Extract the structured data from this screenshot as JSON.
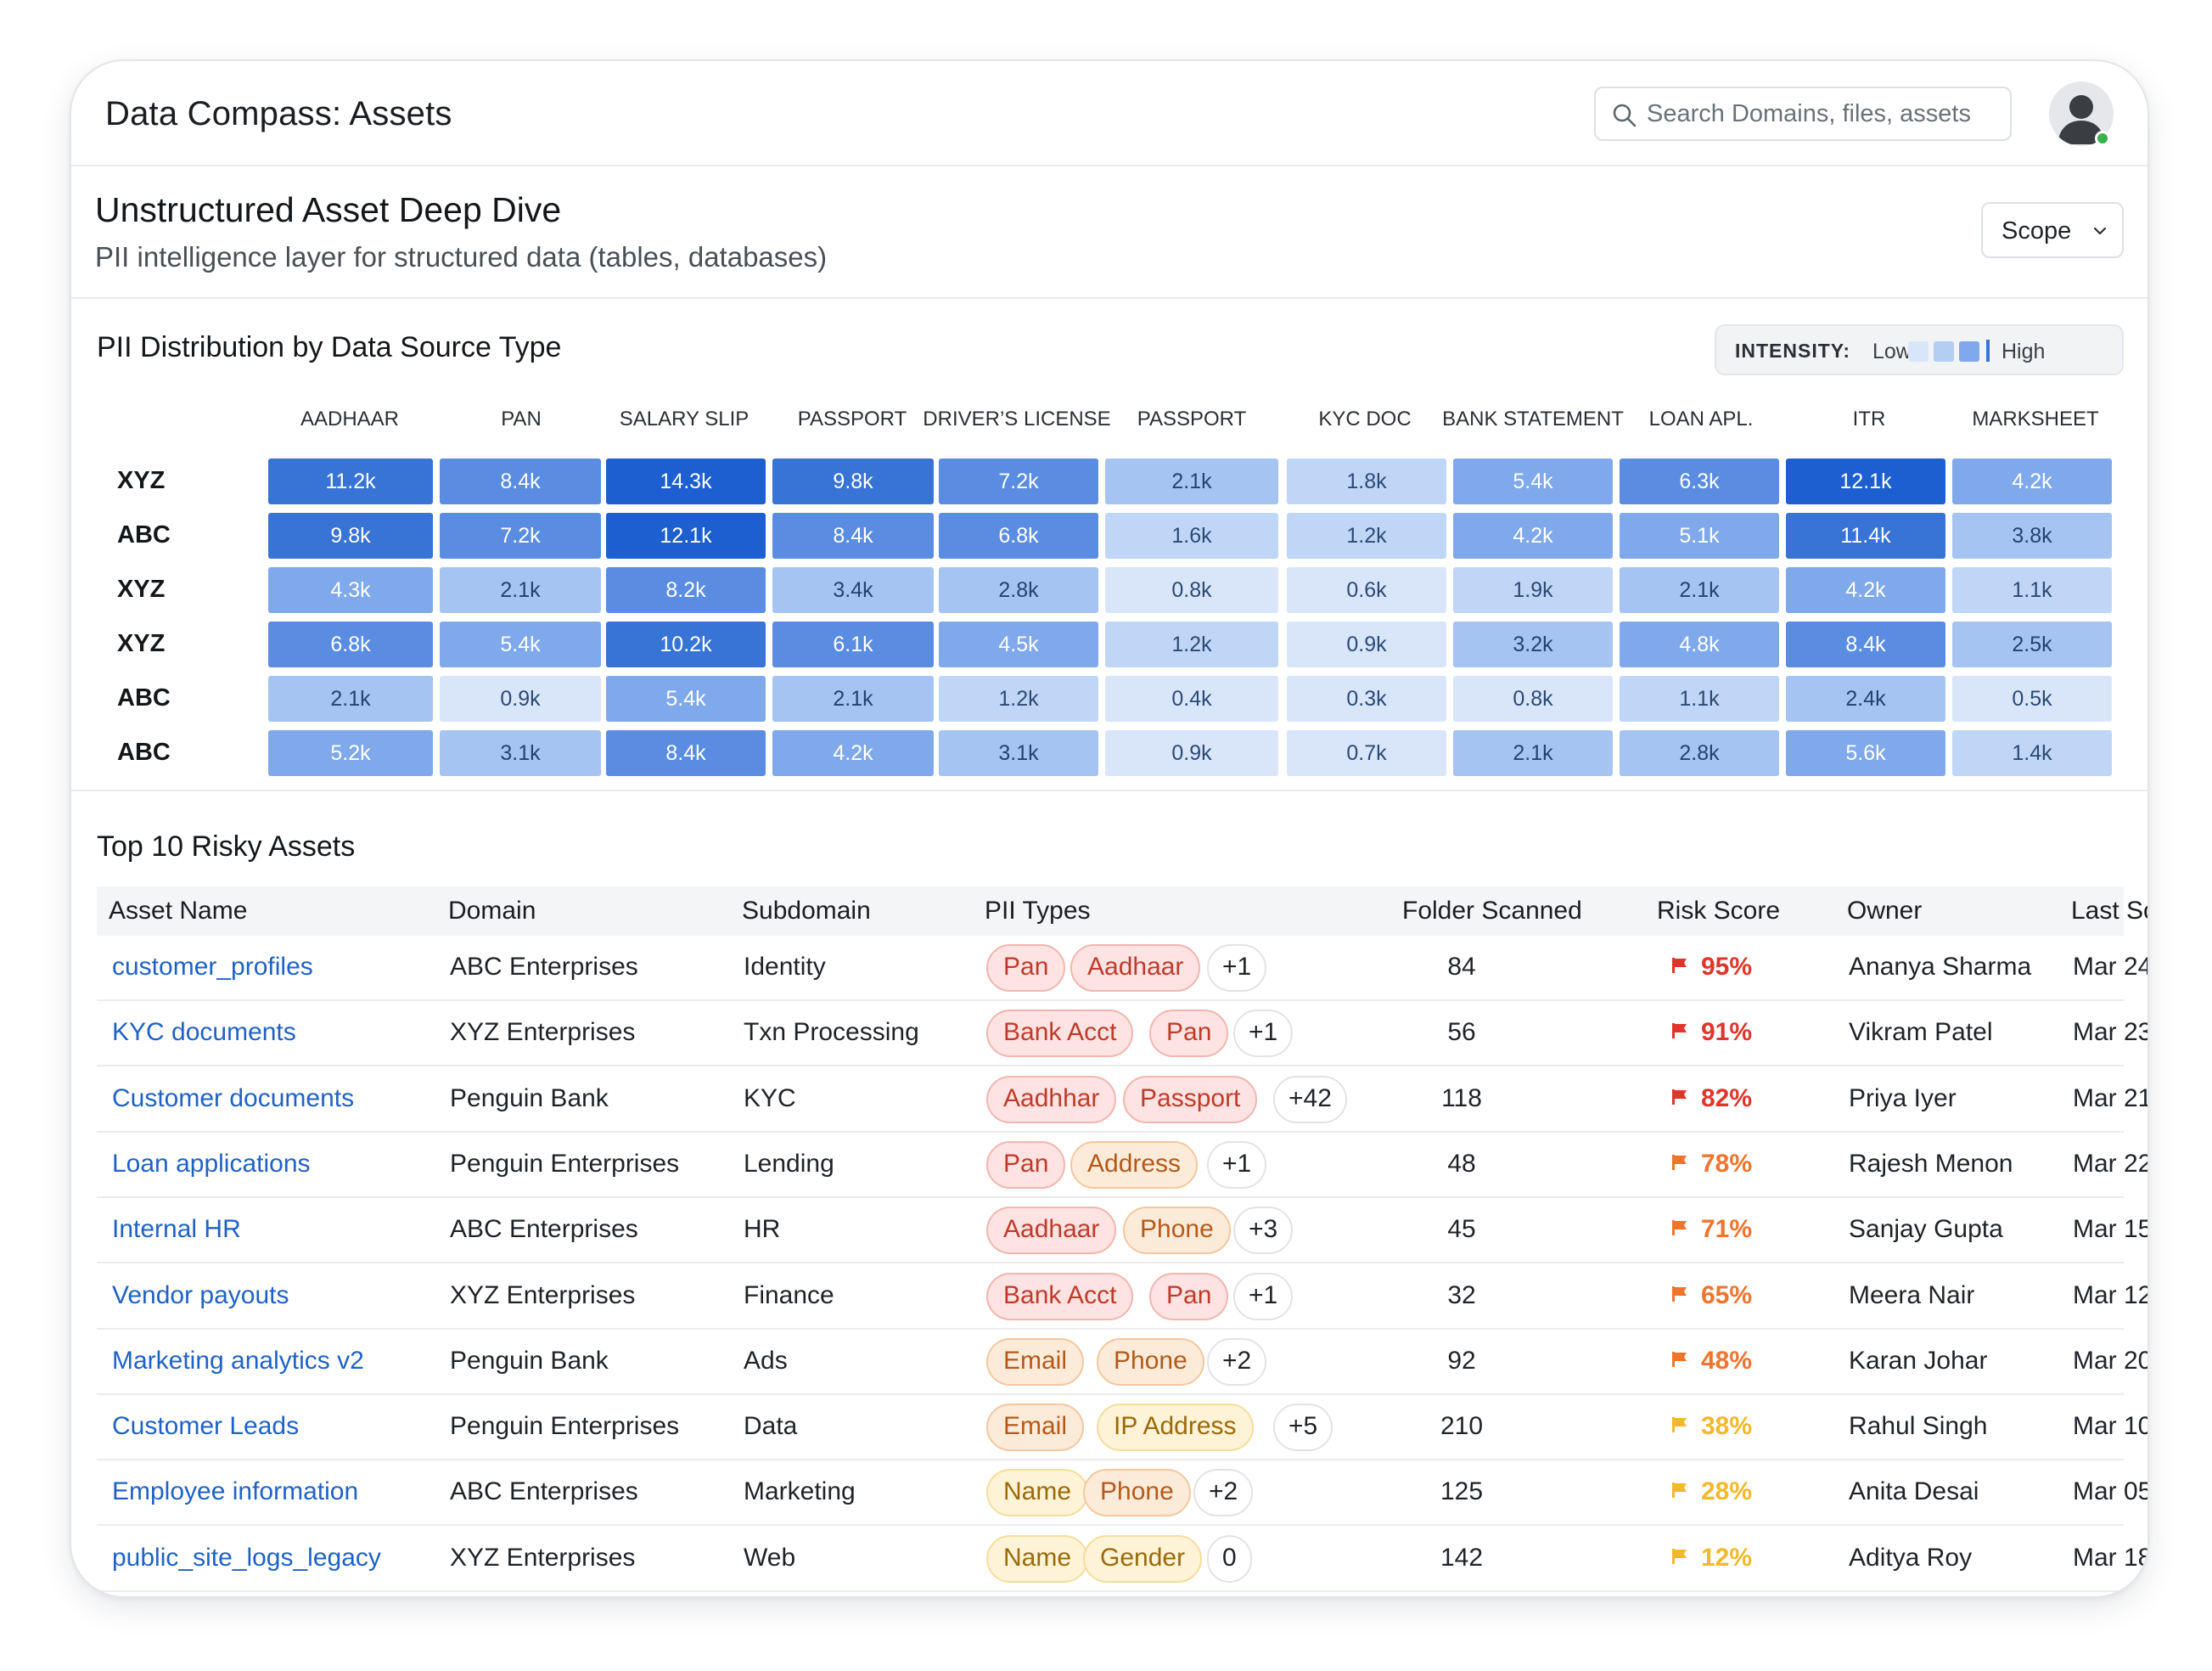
{
  "app": {
    "title": "Data Compass: Assets"
  },
  "search": {
    "placeholder": "Search Domains, files, assets"
  },
  "user": {
    "avatar": "user-avatar-icon",
    "status": "online",
    "status_color": "#36b24a"
  },
  "header": {
    "title": "Unstructured Asset Deep Dive",
    "subtitle": "PII intelligence layer for structured data (tables, databases)",
    "scope_label": "Scope"
  },
  "heatmap": {
    "title": "PII Distribution by Data Source Type",
    "intensity": {
      "label": "INTENSITY:",
      "low": "Low",
      "high": "High"
    },
    "columns": [
      "AADHAAR",
      "PAN",
      "SALARY SLIP",
      "PASSPORT",
      "DRIVER’S LICENSE",
      "PASSPORT",
      "KYC DOC",
      "BANK STATEMENT",
      "LOAN APL.",
      "ITR",
      "MARKSHEET"
    ],
    "rows": [
      {
        "label": "XYZ",
        "cells": [
          "11.2k",
          "8.4k",
          "14.3k",
          "9.8k",
          "7.2k",
          "2.1k",
          "1.8k",
          "5.4k",
          "6.3k",
          "12.1k",
          "4.2k"
        ]
      },
      {
        "label": "ABC",
        "cells": [
          "9.8k",
          "7.2k",
          "12.1k",
          "8.4k",
          "6.8k",
          "1.6k",
          "1.2k",
          "4.2k",
          "5.1k",
          "11.4k",
          "3.8k"
        ]
      },
      {
        "label": "XYZ",
        "cells": [
          "4.3k",
          "2.1k",
          "8.2k",
          "3.4k",
          "2.8k",
          "0.8k",
          "0.6k",
          "1.9k",
          "2.1k",
          "4.2k",
          "1.1k"
        ]
      },
      {
        "label": "XYZ",
        "cells": [
          "6.8k",
          "5.4k",
          "10.2k",
          "6.1k",
          "4.5k",
          "1.2k",
          "0.9k",
          "3.2k",
          "4.8k",
          "8.4k",
          "2.5k"
        ]
      },
      {
        "label": "ABC",
        "cells": [
          "2.1k",
          "0.9k",
          "5.4k",
          "2.1k",
          "1.2k",
          "0.4k",
          "0.3k",
          "0.8k",
          "1.1k",
          "2.4k",
          "0.5k"
        ]
      },
      {
        "label": "ABC",
        "cells": [
          "5.2k",
          "3.1k",
          "8.4k",
          "4.2k",
          "3.1k",
          "0.9k",
          "0.7k",
          "2.1k",
          "2.8k",
          "5.6k",
          "1.4k"
        ]
      }
    ],
    "colors": {
      "level1": "#d9e6fa",
      "level2": "#c0d6f6",
      "level3": "#a6c4f1",
      "level4": "#7fa9eb",
      "level5": "#5a8de1",
      "level6": "#3873d6",
      "level7": "#1d5fd0"
    }
  },
  "risk_table": {
    "title": "Top 10 Risky Assets",
    "headers": [
      "Asset Name",
      "Domain",
      "Subdomain",
      "PII Types",
      "Folder Scanned",
      "Risk Score",
      "Owner",
      "Last Scan"
    ],
    "rows": [
      {
        "asset": "customer_profiles",
        "domain": "ABC Enterprises",
        "subdomain": "Identity",
        "pii": [
          {
            "t": "Pan",
            "c": "red"
          },
          {
            "t": "Aadhaar",
            "c": "red"
          }
        ],
        "more": "+1",
        "folders": "84",
        "risk": "95%",
        "risk_color": "#e0352b",
        "owner": "Ananya Sharma",
        "last": "Mar 24"
      },
      {
        "asset": "KYC documents",
        "domain": "XYZ Enterprises",
        "subdomain": "Txn Processing",
        "pii": [
          {
            "t": "Bank Acct",
            "c": "red"
          },
          {
            "t": "Pan",
            "c": "red"
          }
        ],
        "more": "+1",
        "folders": "56",
        "risk": "91%",
        "risk_color": "#e0352b",
        "owner": "Vikram Patel",
        "last": "Mar 23"
      },
      {
        "asset": "Customer documents",
        "domain": "Penguin Bank",
        "subdomain": "KYC",
        "pii": [
          {
            "t": "Aadhhar",
            "c": "red"
          },
          {
            "t": "Passport",
            "c": "red"
          }
        ],
        "more": "+42",
        "folders": "118",
        "risk": "82%",
        "risk_color": "#e0352b",
        "owner": "Priya Iyer",
        "last": "Mar 21"
      },
      {
        "asset": "Loan applications",
        "domain": "Penguin Enterprises",
        "subdomain": "Lending",
        "pii": [
          {
            "t": "Pan",
            "c": "red"
          },
          {
            "t": "Address",
            "c": "orange"
          }
        ],
        "more": "+1",
        "folders": "48",
        "risk": "78%",
        "risk_color": "#f0742c",
        "owner": "Rajesh Menon",
        "last": "Mar 22"
      },
      {
        "asset": "Internal HR",
        "domain": "ABC Enterprises",
        "subdomain": "HR",
        "pii": [
          {
            "t": "Aadhaar",
            "c": "red"
          },
          {
            "t": "Phone",
            "c": "orange"
          }
        ],
        "more": "+3",
        "folders": "45",
        "risk": "71%",
        "risk_color": "#f0742c",
        "owner": "Sanjay Gupta",
        "last": "Mar 15"
      },
      {
        "asset": "Vendor payouts",
        "domain": "XYZ Enterprises",
        "subdomain": "Finance",
        "pii": [
          {
            "t": "Bank Acct",
            "c": "red"
          },
          {
            "t": "Pan",
            "c": "red"
          }
        ],
        "more": "+1",
        "folders": "32",
        "risk": "65%",
        "risk_color": "#f0742c",
        "owner": "Meera Nair",
        "last": "Mar 12"
      },
      {
        "asset": "Marketing analytics v2",
        "domain": "Penguin Bank",
        "subdomain": "Ads",
        "pii": [
          {
            "t": "Email",
            "c": "orange"
          },
          {
            "t": "Phone",
            "c": "orange"
          }
        ],
        "more": "+2",
        "folders": "92",
        "risk": "48%",
        "risk_color": "#f0742c",
        "owner": "Karan Johar",
        "last": "Mar 20"
      },
      {
        "asset": "Customer Leads",
        "domain": "Penguin Enterprises",
        "subdomain": "Data",
        "pii": [
          {
            "t": "Email",
            "c": "orange"
          },
          {
            "t": "IP Address",
            "c": "yellow"
          }
        ],
        "more": "+5",
        "folders": "210",
        "risk": "38%",
        "risk_color": "#f2b928",
        "owner": "Rahul Singh",
        "last": "Mar 10"
      },
      {
        "asset": "Employee information",
        "domain": "ABC Enterprises",
        "subdomain": "Marketing",
        "pii": [
          {
            "t": "Name",
            "c": "yellow"
          },
          {
            "t": "Phone",
            "c": "orange"
          }
        ],
        "more": "+2",
        "folders": "125",
        "risk": "28%",
        "risk_color": "#f2b928",
        "owner": "Anita Desai",
        "last": "Mar 05"
      },
      {
        "asset": "public_site_logs_legacy",
        "domain": "XYZ Enterprises",
        "subdomain": "Web",
        "pii": [
          {
            "t": "Name",
            "c": "yellow"
          },
          {
            "t": "Gender",
            "c": "yellow"
          }
        ],
        "more": "0",
        "folders": "142",
        "risk": "12%",
        "risk_color": "#f2b928",
        "owner": "Aditya Roy",
        "last": "Mar 18"
      }
    ]
  }
}
